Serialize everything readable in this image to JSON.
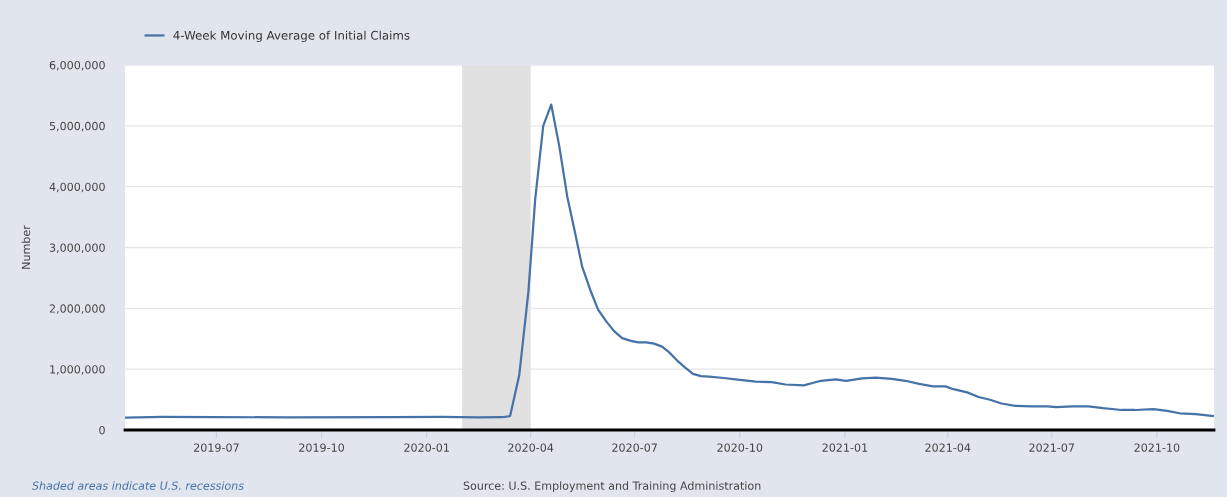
{
  "chart_data": {
    "type": "line",
    "ylabel": "Number",
    "legend": "top left",
    "grid": "y",
    "marker": "none",
    "line_style": "solid",
    "x": [
      "2019-04-13",
      "2019-05-15",
      "2019-07-01",
      "2019-09-01",
      "2019-12-01",
      "2020-01-15",
      "2020-02-15",
      "2020-03-07",
      "2020-03-14",
      "2020-03-22",
      "2020-03-30",
      "2020-04-05",
      "2020-04-12",
      "2020-04-19",
      "2020-04-26",
      "2020-05-03",
      "2020-05-10",
      "2020-05-16",
      "2020-05-23",
      "2020-05-30",
      "2020-06-06",
      "2020-06-13",
      "2020-06-20",
      "2020-06-27",
      "2020-07-04",
      "2020-07-11",
      "2020-07-18",
      "2020-07-25",
      "2020-07-31",
      "2020-08-07",
      "2020-08-14",
      "2020-08-21",
      "2020-08-28",
      "2020-09-04",
      "2020-09-17",
      "2020-10-01",
      "2020-10-15",
      "2020-10-29",
      "2020-11-10",
      "2020-11-26",
      "2020-12-11",
      "2020-12-24",
      "2021-01-02",
      "2021-01-16",
      "2021-01-28",
      "2021-02-11",
      "2021-02-23",
      "2021-03-07",
      "2021-03-19",
      "2021-03-30",
      "2021-04-06",
      "2021-04-18",
      "2021-04-28",
      "2021-05-08",
      "2021-05-18",
      "2021-05-30",
      "2021-06-13",
      "2021-06-27",
      "2021-07-05",
      "2021-07-19",
      "2021-08-02",
      "2021-08-15",
      "2021-08-31",
      "2021-09-12",
      "2021-09-28",
      "2021-10-10",
      "2021-10-21",
      "2021-11-04",
      "2021-11-19"
    ],
    "series": [
      {
        "name": "4-Week Moving Average of Initial Claims",
        "color": "#4572a7",
        "values": [
          205000,
          215000,
          212000,
          208000,
          212000,
          215000,
          208000,
          210000,
          230000,
          900000,
          2270000,
          3800000,
          5000000,
          5350000,
          4670000,
          3840000,
          3230000,
          2690000,
          2310000,
          1980000,
          1790000,
          1625000,
          1510000,
          1470000,
          1440000,
          1440000,
          1420000,
          1370000,
          1280000,
          1145000,
          1030000,
          923000,
          885000,
          878000,
          855000,
          824000,
          794000,
          786000,
          748000,
          733000,
          809000,
          832000,
          809000,
          847000,
          862000,
          839000,
          809000,
          757000,
          717000,
          717000,
          671000,
          618000,
          543000,
          497000,
          436000,
          396000,
          390000,
          390000,
          375000,
          390000,
          390000,
          359000,
          329000,
          329000,
          344000,
          313000,
          275000,
          260000,
          230000
        ]
      }
    ],
    "xlim": [
      "2019-04-12",
      "2021-11-20"
    ],
    "xticks": [
      {
        "value": "2019-07-01",
        "label": "2019-07"
      },
      {
        "value": "2019-10-01",
        "label": "2019-10"
      },
      {
        "value": "2020-01-01",
        "label": "2020-01"
      },
      {
        "value": "2020-04-01",
        "label": "2020-04"
      },
      {
        "value": "2020-07-01",
        "label": "2020-07"
      },
      {
        "value": "2020-10-01",
        "label": "2020-10"
      },
      {
        "value": "2021-01-01",
        "label": "2021-01"
      },
      {
        "value": "2021-04-01",
        "label": "2021-04"
      },
      {
        "value": "2021-07-01",
        "label": "2021-07"
      },
      {
        "value": "2021-10-01",
        "label": "2021-10"
      }
    ],
    "ylim": [
      0,
      6000000
    ],
    "yticks": [
      0,
      {
        "value": 1000000,
        "label": "1,000,000"
      },
      {
        "value": 2000000,
        "label": "2,000,000"
      },
      {
        "value": 3000000,
        "label": "3,000,000"
      },
      {
        "value": 4000000,
        "label": "4,000,000"
      },
      {
        "value": 5000000,
        "label": "5,000,000"
      },
      {
        "value": 6000000,
        "label": "6,000,000"
      }
    ],
    "bands": [
      {
        "axis": "x",
        "from": "2020-02-01",
        "to": "2020-04-01",
        "color": "#e1e1e1"
      }
    ],
    "annotations": [
      "Shaded areas indicate U.S. recessions",
      "Source: U.S. Employment and Training Administration"
    ]
  }
}
